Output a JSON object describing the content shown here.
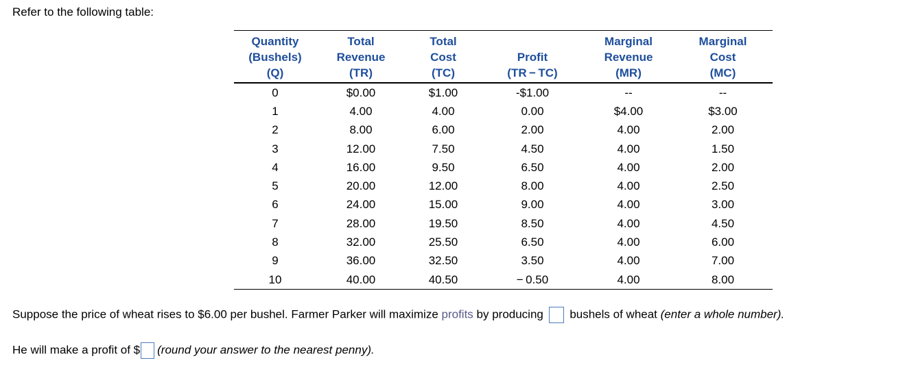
{
  "intro": "Refer to the following table:",
  "table": {
    "headers": [
      [
        "Quantity",
        "(Bushels)",
        "(Q)"
      ],
      [
        "Total",
        "Revenue",
        "(TR)"
      ],
      [
        "Total",
        "Cost",
        "(TC)"
      ],
      [
        "Profit",
        "(TR − TC)"
      ],
      [
        "Marginal",
        "Revenue",
        "(MR)"
      ],
      [
        "Marginal",
        "Cost",
        "(MC)"
      ]
    ],
    "rows": [
      [
        "0",
        "$0.00",
        "$1.00",
        "-$1.00",
        "--",
        "--"
      ],
      [
        "1",
        "4.00",
        "4.00",
        "0.00",
        "$4.00",
        "$3.00"
      ],
      [
        "2",
        "8.00",
        "6.00",
        "2.00",
        "4.00",
        "2.00"
      ],
      [
        "3",
        "12.00",
        "7.50",
        "4.50",
        "4.00",
        "1.50"
      ],
      [
        "4",
        "16.00",
        "9.50",
        "6.50",
        "4.00",
        "2.00"
      ],
      [
        "5",
        "20.00",
        "12.00",
        "8.00",
        "4.00",
        "2.50"
      ],
      [
        "6",
        "24.00",
        "15.00",
        "9.00",
        "4.00",
        "3.00"
      ],
      [
        "7",
        "28.00",
        "19.50",
        "8.50",
        "4.00",
        "4.50"
      ],
      [
        "8",
        "32.00",
        "25.50",
        "6.50",
        "4.00",
        "6.00"
      ],
      [
        "9",
        "36.00",
        "32.50",
        "3.50",
        "4.00",
        "7.00"
      ],
      [
        "10",
        "40.00",
        "40.50",
        "− 0.50",
        "4.00",
        "8.00"
      ]
    ]
  },
  "question1": {
    "before": "Suppose the price of wheat rises to $6.00 per bushel.  Farmer Parker will maximize ",
    "link": "profits",
    "middle": " by producing ",
    "after": " bushels of wheat ",
    "hint": "(enter a whole number).",
    "answer_value": ""
  },
  "question2": {
    "before": "He will make a profit of $",
    "hint": "(round your answer to the nearest penny).",
    "answer_value": ""
  },
  "colors": {
    "header_text": "#1e4e9c",
    "link_text": "#5a5a8a",
    "input_border": "#4a7ebb"
  }
}
